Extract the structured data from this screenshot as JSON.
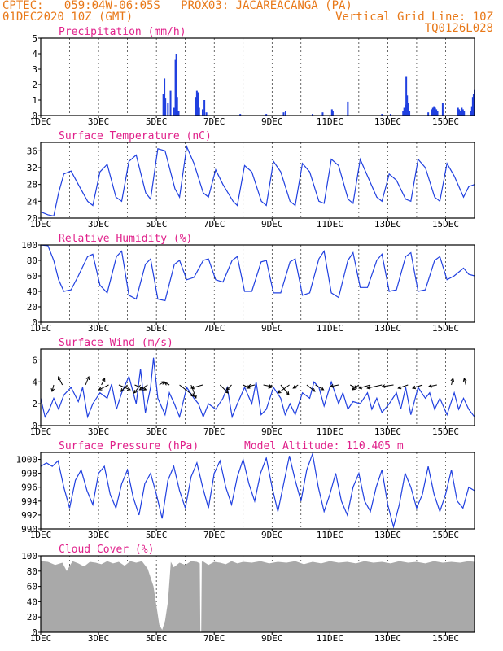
{
  "header": {
    "left_line1": "CPTEC:   059:04W-06:05S   PROX03: JACAREACANGA (PA)",
    "left_line2": "01DEC2020 10Z (GMT)",
    "right_line2": "Vertical Grid Line: 10Z",
    "right_line3": "TQ0126L028",
    "color": "#e87818"
  },
  "colors": {
    "line": "#2040e0",
    "bar": "#2040e0",
    "cloud": "#a9a9a9",
    "title": "#e0208a",
    "arrow": "#000000",
    "grid": "#000000"
  },
  "chart_data": [
    {
      "id": "precip",
      "type": "bar",
      "title": "Precipitation (mm/h)",
      "ylim": [
        0,
        5
      ],
      "yticks": [
        0,
        1,
        2,
        3,
        4,
        5
      ],
      "xticks": [
        "1DEC",
        "3DEC",
        "5DEC",
        "7DEC",
        "9DEC",
        "11DEC",
        "13DEC",
        "15DEC"
      ],
      "x_range_days": [
        0,
        15
      ],
      "bars": [
        {
          "x": 4.24,
          "y": 1.4
        },
        {
          "x": 4.28,
          "y": 2.4
        },
        {
          "x": 4.31,
          "y": 1.1
        },
        {
          "x": 4.4,
          "y": 0.8
        },
        {
          "x": 4.49,
          "y": 1.6
        },
        {
          "x": 4.61,
          "y": 0.5
        },
        {
          "x": 4.66,
          "y": 3.6
        },
        {
          "x": 4.69,
          "y": 4.0
        },
        {
          "x": 4.72,
          "y": 1.2
        },
        {
          "x": 4.77,
          "y": 0.3
        },
        {
          "x": 5.36,
          "y": 1.2
        },
        {
          "x": 5.4,
          "y": 1.6
        },
        {
          "x": 5.44,
          "y": 1.5
        },
        {
          "x": 5.48,
          "y": 0.5
        },
        {
          "x": 5.6,
          "y": 0.4
        },
        {
          "x": 5.66,
          "y": 1.0
        },
        {
          "x": 5.73,
          "y": 0.2
        },
        {
          "x": 6.9,
          "y": 0.1
        },
        {
          "x": 7.8,
          "y": 0.1
        },
        {
          "x": 8.4,
          "y": 0.2
        },
        {
          "x": 8.47,
          "y": 0.3
        },
        {
          "x": 9.4,
          "y": 0.1
        },
        {
          "x": 9.75,
          "y": 0.2
        },
        {
          "x": 10.07,
          "y": 0.4
        },
        {
          "x": 10.1,
          "y": 0.3
        },
        {
          "x": 10.62,
          "y": 0.9
        },
        {
          "x": 11.8,
          "y": 0.1
        },
        {
          "x": 12.1,
          "y": 0.1
        },
        {
          "x": 12.53,
          "y": 0.3
        },
        {
          "x": 12.57,
          "y": 0.5
        },
        {
          "x": 12.61,
          "y": 0.7
        },
        {
          "x": 12.64,
          "y": 2.5
        },
        {
          "x": 12.67,
          "y": 1.3
        },
        {
          "x": 12.7,
          "y": 0.8
        },
        {
          "x": 12.75,
          "y": 0.3
        },
        {
          "x": 13.4,
          "y": 0.2
        },
        {
          "x": 13.52,
          "y": 0.4
        },
        {
          "x": 13.56,
          "y": 0.5
        },
        {
          "x": 13.6,
          "y": 0.6
        },
        {
          "x": 13.64,
          "y": 0.5
        },
        {
          "x": 13.68,
          "y": 0.4
        },
        {
          "x": 13.72,
          "y": 0.3
        },
        {
          "x": 13.9,
          "y": 0.8
        },
        {
          "x": 14.43,
          "y": 0.5
        },
        {
          "x": 14.47,
          "y": 0.4
        },
        {
          "x": 14.52,
          "y": 0.3
        },
        {
          "x": 14.56,
          "y": 0.5
        },
        {
          "x": 14.6,
          "y": 0.4
        },
        {
          "x": 14.64,
          "y": 0.3
        },
        {
          "x": 14.88,
          "y": 0.3
        },
        {
          "x": 14.91,
          "y": 0.6
        },
        {
          "x": 14.94,
          "y": 1.2
        },
        {
          "x": 14.97,
          "y": 1.4
        },
        {
          "x": 15.0,
          "y": 1.7
        }
      ]
    },
    {
      "id": "temp",
      "type": "line",
      "title": "Surface Temperature (nC)",
      "ylim": [
        20,
        38
      ],
      "yticks": [
        20,
        24,
        28,
        32,
        36
      ],
      "xticks": [
        "1DEC",
        "3DEC",
        "5DEC",
        "7DEC",
        "9DEC",
        "11DEC",
        "13DEC",
        "15DEC"
      ],
      "x_range_days": [
        0,
        15
      ],
      "x": [
        0.0,
        0.25,
        0.45,
        0.62,
        0.8,
        1.05,
        1.3,
        1.62,
        1.8,
        2.05,
        2.3,
        2.6,
        2.8,
        3.05,
        3.3,
        3.63,
        3.8,
        4.05,
        4.3,
        4.64,
        4.8,
        5.05,
        5.3,
        5.62,
        5.8,
        6.05,
        6.3,
        6.65,
        6.8,
        7.05,
        7.3,
        7.63,
        7.8,
        8.05,
        8.3,
        8.62,
        8.8,
        9.05,
        9.3,
        9.62,
        9.8,
        10.05,
        10.3,
        10.63,
        10.8,
        11.05,
        11.3,
        11.62,
        11.8,
        12.05,
        12.3,
        12.62,
        12.8,
        13.05,
        13.3,
        13.62,
        13.8,
        14.05,
        14.3,
        14.62,
        14.8,
        15.0
      ],
      "values": [
        21.5,
        20.8,
        20.5,
        26.0,
        30.5,
        31.2,
        28.0,
        24.0,
        23.0,
        31.0,
        32.8,
        25.0,
        24.0,
        33.5,
        35.0,
        26.0,
        24.5,
        36.5,
        36.0,
        27.0,
        25.0,
        37.0,
        33.0,
        26.0,
        25.0,
        31.5,
        28.0,
        24.0,
        23.0,
        32.5,
        31.0,
        24.0,
        23.0,
        33.5,
        31.0,
        24.0,
        23.0,
        33.0,
        31.0,
        24.0,
        23.5,
        34.0,
        32.5,
        24.5,
        23.5,
        34.0,
        30.0,
        25.0,
        24.0,
        30.5,
        29.0,
        24.5,
        24.0,
        34.0,
        32.0,
        25.0,
        24.0,
        33.0,
        30.0,
        25.0,
        27.5,
        28.0
      ]
    },
    {
      "id": "rh",
      "type": "line",
      "title": "Relative Humidity (%)",
      "ylim": [
        0,
        100
      ],
      "yticks": [
        0,
        20,
        40,
        60,
        80,
        100
      ],
      "xticks": [
        "1DEC",
        "3DEC",
        "5DEC",
        "7DEC",
        "9DEC",
        "11DEC",
        "13DEC",
        "15DEC"
      ],
      "x_range_days": [
        0,
        15
      ],
      "x": [
        0.0,
        0.25,
        0.45,
        0.62,
        0.8,
        1.05,
        1.3,
        1.62,
        1.8,
        2.05,
        2.3,
        2.62,
        2.8,
        3.05,
        3.3,
        3.62,
        3.8,
        4.05,
        4.3,
        4.62,
        4.8,
        5.05,
        5.3,
        5.62,
        5.8,
        6.05,
        6.3,
        6.62,
        6.8,
        7.05,
        7.3,
        7.62,
        7.8,
        8.05,
        8.3,
        8.62,
        8.8,
        9.05,
        9.3,
        9.62,
        9.8,
        10.05,
        10.3,
        10.62,
        10.8,
        11.05,
        11.3,
        11.62,
        11.8,
        12.05,
        12.3,
        12.62,
        12.8,
        13.05,
        13.3,
        13.62,
        13.8,
        14.05,
        14.3,
        14.62,
        14.8,
        15.0
      ],
      "values": [
        100,
        99,
        80,
        55,
        40,
        42,
        60,
        85,
        88,
        48,
        38,
        85,
        92,
        35,
        30,
        75,
        82,
        30,
        28,
        75,
        80,
        55,
        58,
        80,
        82,
        55,
        52,
        80,
        85,
        40,
        40,
        78,
        80,
        38,
        38,
        78,
        82,
        35,
        38,
        82,
        92,
        38,
        32,
        80,
        90,
        45,
        45,
        80,
        88,
        40,
        42,
        85,
        90,
        40,
        42,
        80,
        85,
        55,
        60,
        70,
        62,
        60
      ]
    },
    {
      "id": "wind",
      "type": "line",
      "title": "Surface Wind (m/s)",
      "ylim": [
        0,
        7
      ],
      "yticks": [
        0,
        2,
        4,
        6
      ],
      "xticks": [
        "1DEC",
        "3DEC",
        "5DEC",
        "7DEC",
        "9DEC",
        "11DEC",
        "13DEC",
        "15DEC"
      ],
      "x_range_days": [
        0,
        15
      ],
      "x": [
        0.0,
        0.15,
        0.3,
        0.45,
        0.62,
        0.8,
        1.05,
        1.3,
        1.45,
        1.62,
        1.8,
        2.05,
        2.3,
        2.45,
        2.62,
        2.8,
        3.05,
        3.3,
        3.45,
        3.62,
        3.8,
        3.9,
        4.05,
        4.3,
        4.45,
        4.62,
        4.8,
        5.05,
        5.3,
        5.45,
        5.62,
        5.8,
        6.05,
        6.3,
        6.45,
        6.62,
        6.8,
        7.05,
        7.3,
        7.45,
        7.62,
        7.8,
        8.05,
        8.3,
        8.45,
        8.62,
        8.8,
        9.05,
        9.3,
        9.45,
        9.62,
        9.8,
        10.05,
        10.3,
        10.45,
        10.62,
        10.8,
        11.05,
        11.3,
        11.45,
        11.62,
        11.8,
        12.05,
        12.3,
        12.45,
        12.62,
        12.8,
        13.05,
        13.3,
        13.45,
        13.62,
        13.8,
        14.05,
        14.3,
        14.45,
        14.62,
        14.8,
        15.0
      ],
      "values": [
        2.5,
        0.8,
        1.5,
        2.5,
        1.5,
        2.8,
        3.5,
        2.2,
        3.5,
        0.8,
        2.0,
        3.0,
        2.5,
        3.8,
        1.5,
        3.0,
        4.5,
        2.0,
        5.2,
        1.2,
        3.5,
        6.2,
        2.5,
        1.0,
        3.0,
        2.0,
        0.8,
        3.5,
        2.5,
        2.0,
        0.8,
        2.0,
        1.5,
        2.5,
        3.5,
        0.8,
        2.0,
        3.5,
        2.0,
        4.0,
        1.0,
        1.5,
        3.5,
        2.5,
        1.0,
        2.0,
        1.0,
        3.0,
        2.5,
        4.0,
        3.5,
        1.8,
        4.0,
        2.0,
        3.0,
        1.5,
        2.2,
        2.0,
        3.0,
        1.5,
        2.5,
        1.2,
        2.0,
        3.0,
        1.5,
        3.5,
        1.0,
        3.5,
        2.5,
        3.0,
        1.5,
        2.5,
        1.0,
        3.0,
        1.5,
        2.5,
        1.5,
        0.8
      ],
      "vectors": [
        {
          "x": 0.45,
          "dx": -2,
          "dy": 8
        },
        {
          "x": 0.75,
          "dx": -5,
          "dy": -10
        },
        {
          "x": 1.55,
          "dx": 4,
          "dy": -10
        },
        {
          "x": 2.1,
          "dx": 4,
          "dy": -8
        },
        {
          "x": 2.35,
          "dx": -12,
          "dy": 6
        },
        {
          "x": 2.7,
          "dx": 14,
          "dy": 6
        },
        {
          "x": 3.0,
          "dx": -8,
          "dy": 8
        },
        {
          "x": 3.25,
          "dx": 14,
          "dy": 6
        },
        {
          "x": 3.45,
          "dx": -8,
          "dy": 10
        },
        {
          "x": 3.7,
          "dx": -10,
          "dy": 6
        },
        {
          "x": 4.1,
          "dx": 6,
          "dy": -4
        },
        {
          "x": 4.45,
          "dx": -6,
          "dy": -3
        },
        {
          "x": 4.8,
          "dx": 18,
          "dy": 14
        },
        {
          "x": 5.2,
          "dx": 6,
          "dy": 16
        },
        {
          "x": 5.6,
          "dx": -14,
          "dy": 4
        },
        {
          "x": 6.2,
          "dx": 10,
          "dy": 10
        },
        {
          "x": 6.6,
          "dx": -6,
          "dy": 6
        },
        {
          "x": 7.0,
          "dx": 8,
          "dy": 4
        },
        {
          "x": 7.4,
          "dx": -8,
          "dy": 2
        },
        {
          "x": 7.7,
          "dx": 10,
          "dy": 2
        },
        {
          "x": 8.0,
          "dx": -4,
          "dy": 4
        },
        {
          "x": 8.3,
          "dx": 10,
          "dy": 12
        },
        {
          "x": 8.6,
          "dx": -14,
          "dy": 10
        },
        {
          "x": 8.9,
          "dx": -6,
          "dy": 4
        },
        {
          "x": 9.2,
          "dx": 10,
          "dy": 8
        },
        {
          "x": 9.5,
          "dx": 10,
          "dy": 6
        },
        {
          "x": 10.3,
          "dx": -10,
          "dy": 2
        },
        {
          "x": 10.7,
          "dx": 8,
          "dy": 4
        },
        {
          "x": 11.0,
          "dx": -8,
          "dy": 6
        },
        {
          "x": 11.4,
          "dx": -14,
          "dy": 4
        },
        {
          "x": 11.8,
          "dx": -18,
          "dy": 4
        },
        {
          "x": 12.2,
          "dx": -14,
          "dy": 2
        },
        {
          "x": 12.7,
          "dx": -12,
          "dy": 4
        },
        {
          "x": 13.2,
          "dx": -12,
          "dy": 4
        },
        {
          "x": 13.7,
          "dx": -10,
          "dy": 2
        },
        {
          "x": 14.2,
          "dx": 2,
          "dy": -8
        },
        {
          "x": 14.7,
          "dx": -2,
          "dy": -8
        }
      ]
    },
    {
      "id": "press",
      "type": "line",
      "title": "Surface Pressure (hPa)",
      "annotation": "Model Altitude: 110.405 m",
      "ylim": [
        990,
        1001
      ],
      "yticks": [
        990,
        992,
        994,
        996,
        998,
        1000
      ],
      "xticks": [
        "1DEC",
        "3DEC",
        "5DEC",
        "7DEC",
        "9DEC",
        "11DEC",
        "13DEC",
        "15DEC"
      ],
      "x_range_days": [
        0,
        15
      ],
      "x": [
        0.0,
        0.2,
        0.4,
        0.6,
        0.8,
        1.0,
        1.2,
        1.4,
        1.6,
        1.8,
        2.0,
        2.2,
        2.4,
        2.6,
        2.8,
        3.0,
        3.2,
        3.4,
        3.6,
        3.8,
        4.0,
        4.2,
        4.4,
        4.6,
        4.8,
        5.0,
        5.2,
        5.4,
        5.6,
        5.8,
        6.0,
        6.2,
        6.4,
        6.6,
        6.8,
        7.0,
        7.2,
        7.4,
        7.6,
        7.8,
        8.0,
        8.2,
        8.4,
        8.6,
        8.8,
        9.0,
        9.2,
        9.4,
        9.6,
        9.8,
        10.0,
        10.2,
        10.4,
        10.6,
        10.8,
        11.0,
        11.2,
        11.4,
        11.6,
        11.8,
        12.0,
        12.2,
        12.4,
        12.6,
        12.8,
        13.0,
        13.2,
        13.4,
        13.6,
        13.8,
        14.0,
        14.2,
        14.4,
        14.6,
        14.8,
        15.0
      ],
      "values": [
        999,
        999.5,
        999,
        999.8,
        996,
        993,
        997,
        998.5,
        995.5,
        993.5,
        998,
        999,
        995,
        993,
        996.5,
        998.5,
        994.5,
        992,
        996.5,
        998,
        995,
        991.5,
        997,
        999,
        995.5,
        993,
        997.5,
        999.5,
        996,
        993,
        998,
        999.8,
        996,
        993.5,
        997.5,
        1000,
        996.5,
        994,
        998,
        1000.2,
        996,
        992.5,
        996.5,
        1000.5,
        997,
        994,
        998.5,
        1000.8,
        996,
        992.5,
        995,
        998,
        994,
        992,
        996,
        998,
        994,
        992.5,
        996,
        998.5,
        993.5,
        990.3,
        993.5,
        998,
        996,
        993,
        995,
        999,
        995,
        992.5,
        995,
        998.5,
        994,
        993,
        996,
        995.5
      ]
    },
    {
      "id": "cloud",
      "type": "area",
      "title": "Cloud Cover (%)",
      "ylim": [
        0,
        100
      ],
      "yticks": [
        0,
        20,
        40,
        60,
        80,
        100
      ],
      "xticks": [
        "1DEC",
        "3DEC",
        "5DEC",
        "7DEC",
        "9DEC",
        "11DEC",
        "13DEC",
        "15DEC"
      ],
      "x_range_days": [
        0,
        15
      ],
      "x": [
        0.0,
        0.25,
        0.5,
        0.75,
        0.9,
        1.1,
        1.3,
        1.5,
        1.7,
        1.9,
        2.1,
        2.3,
        2.5,
        2.7,
        2.9,
        3.1,
        3.3,
        3.5,
        3.7,
        3.9,
        4.0,
        4.1,
        4.2,
        4.3,
        4.4,
        4.5,
        4.6,
        4.8,
        5.0,
        5.2,
        5.4,
        5.5,
        5.52,
        5.55,
        5.57,
        5.6,
        5.8,
        6.0,
        6.2,
        6.4,
        6.6,
        6.8,
        7.0,
        7.3,
        7.6,
        7.9,
        8.2,
        8.5,
        8.8,
        9.1,
        9.4,
        9.7,
        10.0,
        10.3,
        10.6,
        10.9,
        11.2,
        11.5,
        11.8,
        12.1,
        12.4,
        12.7,
        13.0,
        13.3,
        13.6,
        13.9,
        14.2,
        14.5,
        14.8,
        15.0
      ],
      "values": [
        93,
        92,
        88,
        91,
        80,
        93,
        90,
        86,
        92,
        91,
        89,
        93,
        90,
        92,
        87,
        93,
        91,
        93,
        83,
        60,
        35,
        10,
        3,
        15,
        40,
        92,
        85,
        91,
        88,
        93,
        92,
        90,
        0,
        0,
        92,
        93,
        88,
        92,
        91,
        89,
        93,
        90,
        92,
        91,
        93,
        90,
        92,
        91,
        93,
        89,
        92,
        90,
        93,
        91,
        92,
        90,
        93,
        91,
        92,
        90,
        93,
        91,
        92,
        90,
        93,
        91,
        92,
        91,
        93,
        92
      ]
    }
  ]
}
